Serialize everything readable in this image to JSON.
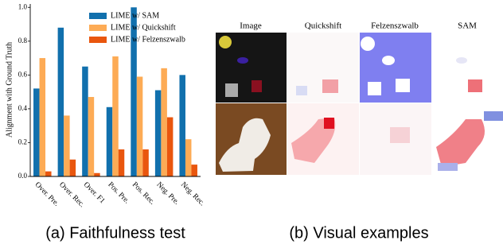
{
  "chart_data": {
    "type": "bar",
    "y_label": "Alignment with Ground Truth",
    "categories": [
      "Over. Pre.",
      "Over. Rec.",
      "Over. F1",
      "Pos. Pre.",
      "Pos. Rec.",
      "Neg. Pre.",
      "Neg. Rec."
    ],
    "series": [
      {
        "name": "LIME w/ SAM",
        "color": "#1170ad",
        "values": [
          0.52,
          0.88,
          0.65,
          0.41,
          1.0,
          0.51,
          0.6
        ]
      },
      {
        "name": "LIME w/ Quickshift",
        "color": "#fdab55",
        "values": [
          0.7,
          0.36,
          0.47,
          0.71,
          0.59,
          0.64,
          0.22
        ]
      },
      {
        "name": "LIME w/ Felzenszwalb",
        "color": "#e9560e",
        "values": [
          0.03,
          0.1,
          0.02,
          0.16,
          0.16,
          0.35,
          0.07
        ]
      }
    ],
    "ylim": [
      0,
      1.02
    ],
    "yticks": [
      {
        "value": 0,
        "label": "0.0"
      },
      0.2,
      0.4,
      0.6,
      0.8,
      {
        "value": 1,
        "label": "1.0"
      }
    ],
    "legend": "upper right"
  },
  "captions": [
    "(a) Faithfulness test",
    "(b) Visual examples"
  ],
  "visual_examples": {
    "columns": [
      "Image",
      "Quickshift",
      "Felzenszwalb",
      "SAM"
    ]
  }
}
